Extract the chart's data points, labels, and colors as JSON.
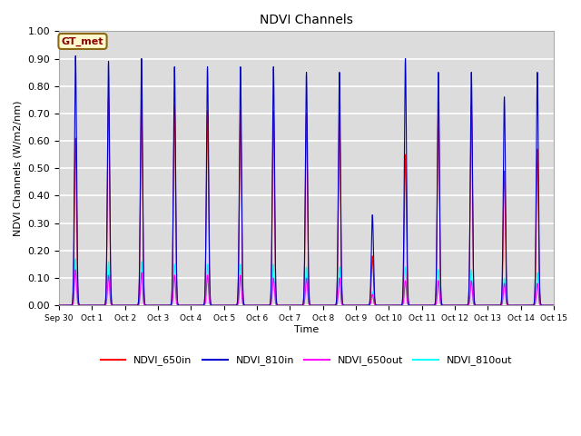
{
  "title": "NDVI Channels",
  "xlabel": "Time",
  "ylabel": "NDVI Channels (W/m2/nm)",
  "ylim": [
    0.0,
    1.0
  ],
  "background_color": "#dcdcdc",
  "grid_color": "white",
  "legend_entries": [
    "NDVI_650in",
    "NDVI_810in",
    "NDVI_650out",
    "NDVI_810out"
  ],
  "line_colors": [
    "red",
    "#0000cc",
    "magenta",
    "cyan"
  ],
  "gt_label": "GT_met",
  "gt_label_color": "#8B0000",
  "gt_box_color": "#FFFACD",
  "xtick_labels": [
    "Sep 30",
    "Oct 1",
    "Oct 2",
    "Oct 3",
    "Oct 4",
    "Oct 5",
    "Oct 6",
    "Oct 7",
    "Oct 8",
    "Oct 9",
    "Oct 10",
    "Oct 11",
    "Oct 12",
    "Oct 13",
    "Oct 14",
    "Oct 15"
  ],
  "peak_heights_650in": [
    0.61,
    0.76,
    0.75,
    0.73,
    0.71,
    0.71,
    0.71,
    0.7,
    0.7,
    0.18,
    0.55,
    0.73,
    0.73,
    0.49,
    0.57
  ],
  "peak_heights_810in": [
    0.91,
    0.89,
    0.9,
    0.87,
    0.87,
    0.87,
    0.87,
    0.85,
    0.85,
    0.33,
    0.9,
    0.85,
    0.85,
    0.76,
    0.85
  ],
  "peak_heights_650out": [
    0.13,
    0.11,
    0.12,
    0.11,
    0.11,
    0.11,
    0.1,
    0.1,
    0.1,
    0.04,
    0.09,
    0.09,
    0.09,
    0.08,
    0.08
  ],
  "peak_heights_810out": [
    0.17,
    0.16,
    0.16,
    0.15,
    0.15,
    0.15,
    0.15,
    0.14,
    0.14,
    0.05,
    0.14,
    0.13,
    0.13,
    0.1,
    0.12
  ],
  "days": 15,
  "points_per_day": 500,
  "sigma_in": 0.032,
  "sigma_out": 0.03
}
